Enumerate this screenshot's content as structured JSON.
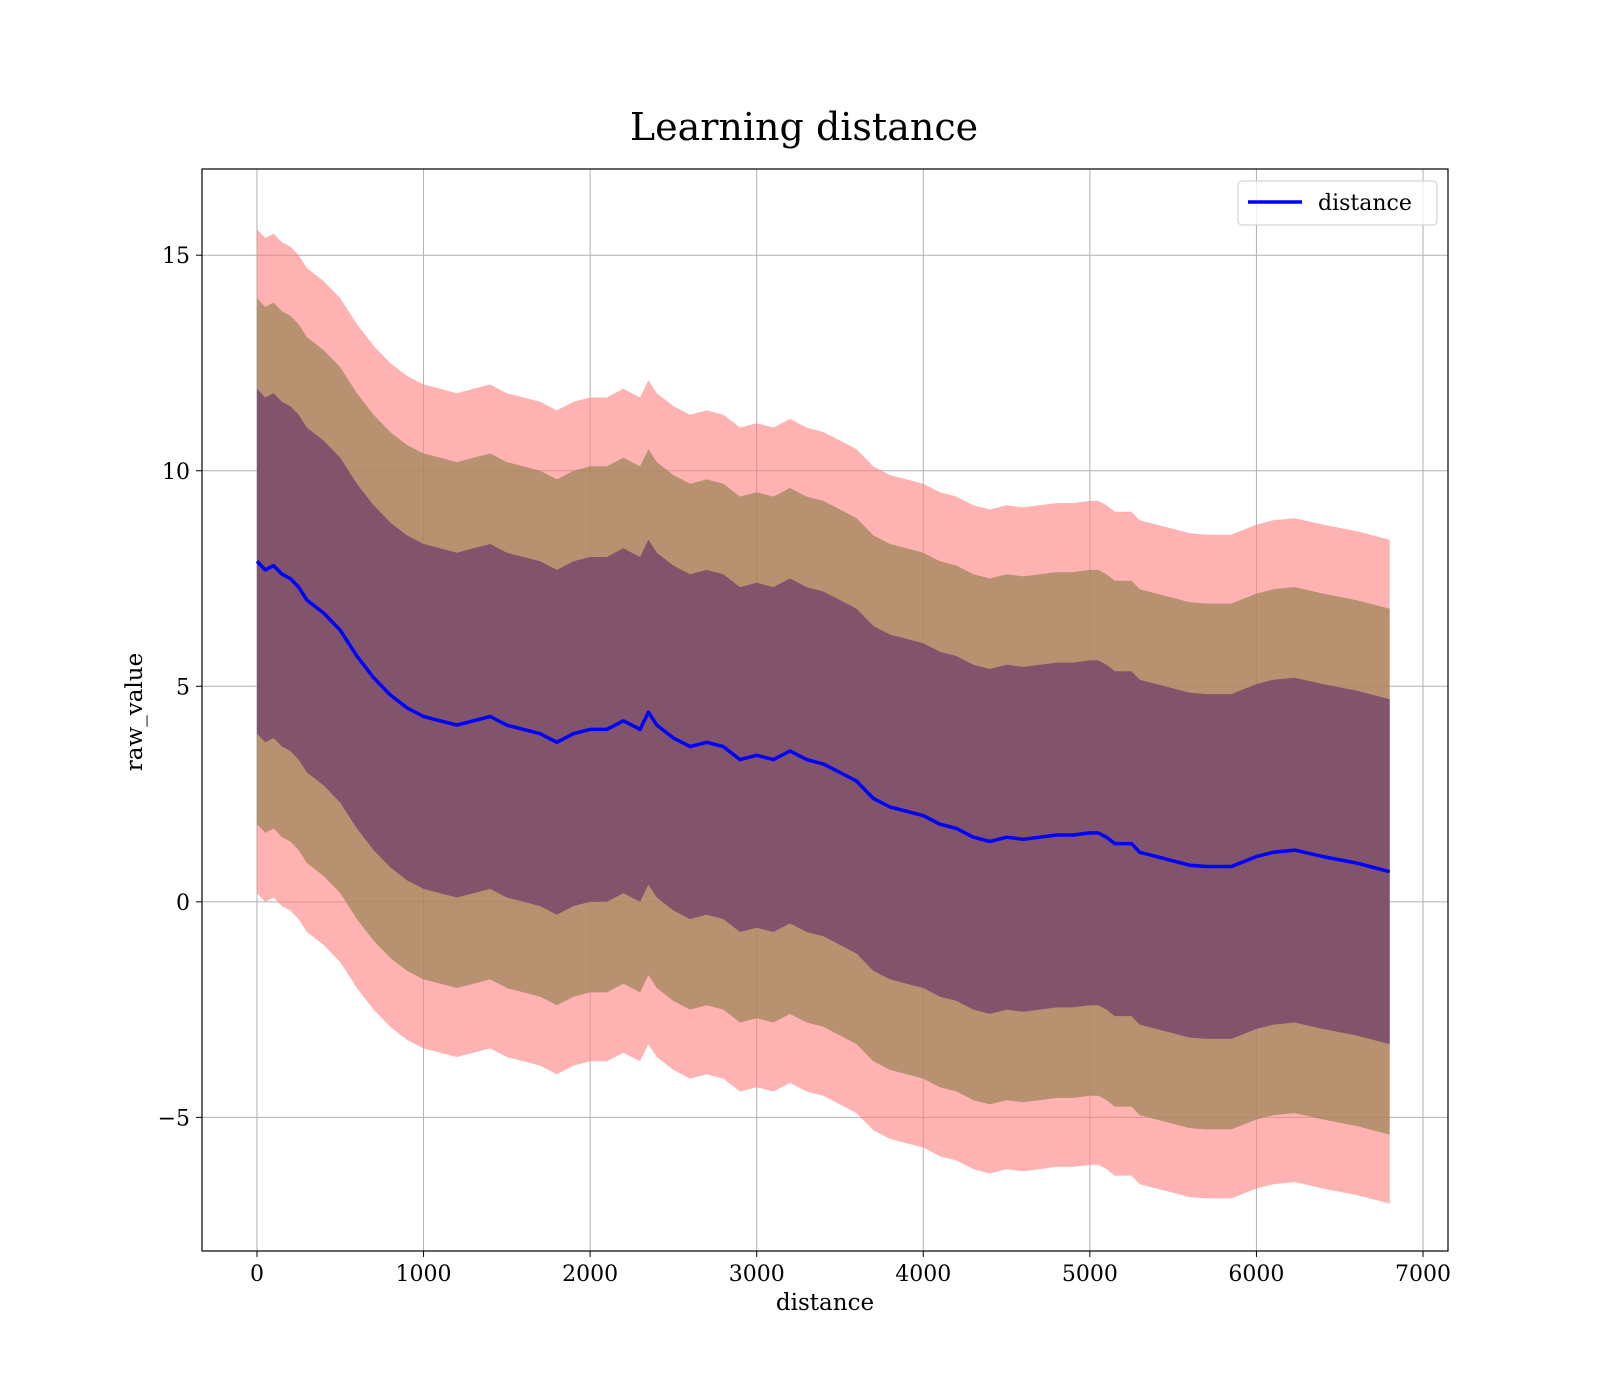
{
  "chart_data": {
    "type": "line",
    "title": "Learning distance",
    "xlabel": "distance",
    "ylabel": "raw_value",
    "xlim": [
      -330,
      7150
    ],
    "ylim": [
      -8.1,
      17.0
    ],
    "xticks": [
      0,
      1000,
      2000,
      3000,
      4000,
      5000,
      6000,
      7000
    ],
    "yticks": [
      -5,
      0,
      5,
      10,
      15
    ],
    "ytick_labels": [
      "−5",
      "0",
      "5",
      "10",
      "15"
    ],
    "grid": true,
    "legend": {
      "position": "top-right",
      "entries": [
        "distance"
      ]
    },
    "colors": {
      "line": "#0000ff",
      "band_outer": "#ff7f7f",
      "band_middle": "#a0855a",
      "band_inner": "#6b3a6b"
    },
    "series": [
      {
        "name": "distance",
        "x": [
          0,
          50,
          100,
          150,
          200,
          250,
          300,
          400,
          500,
          600,
          700,
          800,
          900,
          1000,
          1100,
          1200,
          1300,
          1400,
          1500,
          1600,
          1700,
          1800,
          1900,
          2000,
          2100,
          2200,
          2300,
          2350,
          2400,
          2500,
          2600,
          2700,
          2800,
          2900,
          3000,
          3100,
          3200,
          3300,
          3400,
          3500,
          3600,
          3700,
          3800,
          3900,
          4000,
          4100,
          4200,
          4300,
          4400,
          4500,
          4600,
          4700,
          4800,
          4900,
          5000,
          5050,
          5100,
          5150,
          5250,
          5300,
          5400,
          5500,
          5600,
          5700,
          5850,
          6000,
          6100,
          6230,
          6400,
          6600,
          6800
        ],
        "y": [
          7.9,
          7.7,
          7.8,
          7.6,
          7.5,
          7.3,
          7.0,
          6.7,
          6.3,
          5.7,
          5.2,
          4.8,
          4.5,
          4.3,
          4.2,
          4.1,
          4.2,
          4.3,
          4.1,
          4.0,
          3.9,
          3.7,
          3.9,
          4.0,
          4.0,
          4.2,
          4.0,
          4.4,
          4.1,
          3.8,
          3.6,
          3.7,
          3.6,
          3.3,
          3.4,
          3.3,
          3.5,
          3.3,
          3.2,
          3.0,
          2.8,
          2.4,
          2.2,
          2.1,
          2.0,
          1.8,
          1.7,
          1.5,
          1.4,
          1.5,
          1.45,
          1.5,
          1.55,
          1.55,
          1.6,
          1.6,
          1.5,
          1.35,
          1.35,
          1.15,
          1.05,
          0.95,
          0.85,
          0.82,
          0.82,
          1.05,
          1.15,
          1.2,
          1.05,
          0.9,
          0.7
        ],
        "band_half_widths": [
          7.7,
          6.1,
          4.0
        ]
      }
    ]
  }
}
